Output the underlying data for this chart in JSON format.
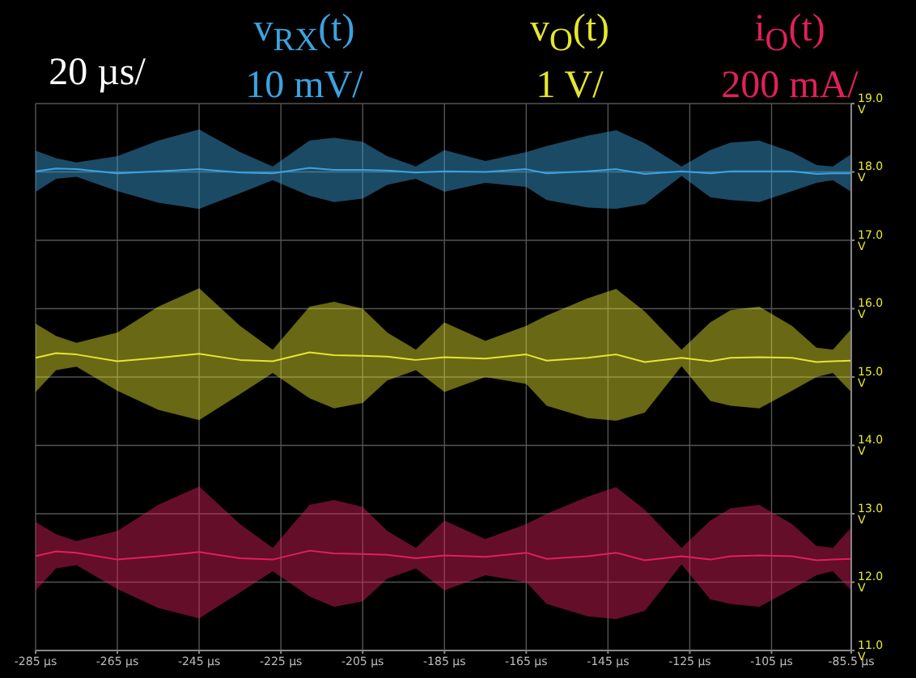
{
  "chart_data": {
    "type": "line",
    "x": [
      -285,
      -280,
      -275,
      -265,
      -255,
      -245,
      -235,
      -227,
      -218,
      -212,
      -205,
      -199,
      -192,
      -185,
      -175,
      -165,
      -160,
      -150,
      -143,
      -136,
      -127,
      -120,
      -115,
      -108,
      -100,
      -94,
      -90,
      -85.5
    ],
    "series": [
      {
        "name": "v$_{RX}$(t)",
        "color": "#3ba3e0",
        "values": [
          18.01,
          18.05,
          18.04,
          17.98,
          18.01,
          18.04,
          17.99,
          17.98,
          18.06,
          18.03,
          18.03,
          18.02,
          17.99,
          18.01,
          18.0,
          18.04,
          17.98,
          18.01,
          18.04,
          17.97,
          18.01,
          17.98,
          18.01,
          18.01,
          18.01,
          17.97,
          17.98,
          17.98
        ],
        "upper": [
          18.31,
          18.2,
          18.14,
          18.23,
          18.46,
          18.62,
          18.29,
          18.08,
          18.46,
          18.5,
          18.44,
          18.23,
          18.08,
          18.32,
          18.16,
          18.29,
          18.38,
          18.53,
          18.61,
          18.42,
          18.08,
          18.32,
          18.43,
          18.46,
          18.29,
          18.1,
          18.08,
          18.26
        ],
        "lower": [
          17.71,
          17.9,
          17.93,
          17.72,
          17.55,
          17.46,
          17.69,
          17.88,
          17.65,
          17.56,
          17.61,
          17.81,
          17.9,
          17.71,
          17.84,
          17.78,
          17.59,
          17.48,
          17.46,
          17.53,
          17.94,
          17.63,
          17.59,
          17.56,
          17.72,
          17.84,
          17.88,
          17.71
        ]
      },
      {
        "name": "v$_{O}$(t)",
        "color": "#e6e62e",
        "values": [
          15.28,
          15.35,
          15.33,
          15.23,
          15.28,
          15.34,
          15.25,
          15.23,
          15.36,
          15.32,
          15.31,
          15.3,
          15.25,
          15.29,
          15.27,
          15.33,
          15.24,
          15.28,
          15.33,
          15.22,
          15.28,
          15.23,
          15.28,
          15.29,
          15.28,
          15.22,
          15.23,
          15.24
        ],
        "upper": [
          15.78,
          15.6,
          15.5,
          15.65,
          16.03,
          16.3,
          15.75,
          15.4,
          16.03,
          16.1,
          16.0,
          15.65,
          15.4,
          15.8,
          15.53,
          15.75,
          15.9,
          16.15,
          16.29,
          15.96,
          15.4,
          15.8,
          15.98,
          16.03,
          15.75,
          15.43,
          15.4,
          15.7
        ],
        "lower": [
          14.78,
          15.1,
          15.15,
          14.8,
          14.52,
          14.37,
          14.75,
          15.06,
          14.69,
          14.54,
          14.62,
          14.95,
          15.1,
          14.78,
          15.0,
          14.9,
          14.58,
          14.4,
          14.36,
          14.48,
          15.16,
          14.65,
          14.58,
          14.54,
          14.8,
          15.0,
          15.06,
          14.78
        ]
      },
      {
        "name": "i$_{O}$(t)",
        "color": "#e0205a",
        "values": [
          12.38,
          12.45,
          12.43,
          12.33,
          12.38,
          12.44,
          12.35,
          12.33,
          12.46,
          12.42,
          12.41,
          12.4,
          12.35,
          12.39,
          12.37,
          12.43,
          12.34,
          12.38,
          12.43,
          12.32,
          12.38,
          12.33,
          12.38,
          12.39,
          12.38,
          12.32,
          12.33,
          12.34
        ],
        "upper": [
          12.88,
          12.7,
          12.6,
          12.75,
          13.13,
          13.4,
          12.85,
          12.5,
          13.13,
          13.2,
          13.1,
          12.75,
          12.5,
          12.9,
          12.63,
          12.85,
          13.0,
          13.25,
          13.39,
          13.06,
          12.5,
          12.9,
          13.08,
          13.13,
          12.85,
          12.53,
          12.5,
          12.8
        ],
        "lower": [
          11.88,
          12.2,
          12.25,
          11.9,
          11.62,
          11.47,
          11.85,
          12.16,
          11.79,
          11.64,
          11.72,
          12.05,
          12.2,
          11.88,
          12.1,
          12.0,
          11.68,
          11.5,
          11.46,
          11.58,
          12.26,
          11.75,
          11.68,
          11.64,
          11.9,
          12.1,
          12.16,
          11.88
        ]
      }
    ],
    "xlim": [
      -285,
      -85.5
    ],
    "xticks": [
      {
        "value": -285,
        "label": "-285 µs"
      },
      {
        "value": -265,
        "label": "-265 µs"
      },
      {
        "value": -245,
        "label": "-245 µs"
      },
      {
        "value": -225,
        "label": "-225 µs"
      },
      {
        "value": -205,
        "label": "-205 µs"
      },
      {
        "value": -185,
        "label": "-185 µs"
      },
      {
        "value": -165,
        "label": "-165 µs"
      },
      {
        "value": -145,
        "label": "-145 µs"
      },
      {
        "value": -125,
        "label": "-125 µs"
      },
      {
        "value": -105,
        "label": "-105 µs"
      },
      {
        "value": -85.5,
        "label": "-85.5 µs"
      }
    ],
    "ylim": [
      11,
      19
    ],
    "yticks": [
      {
        "value": 11,
        "label": "11.0 V"
      },
      {
        "value": 12,
        "label": "12.0 V"
      },
      {
        "value": 13,
        "label": "13.0 V"
      },
      {
        "value": 14,
        "label": "14.0 V"
      },
      {
        "value": 15,
        "label": "15.0 V"
      },
      {
        "value": 16,
        "label": "16.0 V"
      },
      {
        "value": 17,
        "label": "17.0 V"
      },
      {
        "value": 18,
        "label": "18.0 V"
      },
      {
        "value": 19,
        "label": "19.0 V"
      }
    ],
    "grid": true,
    "legend": "top",
    "marker": "none",
    "annotations": [
      "20 µs/",
      "10 mV/",
      "1 V/",
      "200 mA/"
    ]
  }
}
